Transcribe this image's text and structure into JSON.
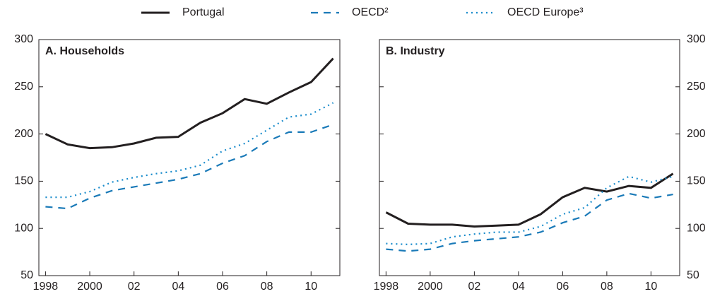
{
  "chart_data": [
    {
      "type": "line",
      "title": "A. Households",
      "y_axis_position": "left",
      "x": [
        1998,
        1999,
        2000,
        2001,
        2002,
        2003,
        2004,
        2005,
        2006,
        2007,
        2008,
        2009,
        2010,
        2011
      ],
      "xlim": [
        1997.7,
        2011.3
      ],
      "xticks": [
        1998,
        2000,
        {
          "value": 2002,
          "label": "02"
        },
        {
          "value": 2004,
          "label": "04"
        },
        {
          "value": 2006,
          "label": "06"
        },
        {
          "value": 2008,
          "label": "08"
        },
        {
          "value": 2010,
          "label": "10"
        }
      ],
      "ylim": [
        50,
        300
      ],
      "yticks": [
        50,
        100,
        150,
        200,
        250,
        300
      ],
      "series": [
        {
          "name": "Portugal",
          "color": "#231f20",
          "style": "solid",
          "values": [
            200,
            189,
            185,
            186,
            190,
            196,
            197,
            212,
            222,
            237,
            232,
            244,
            255,
            280
          ]
        },
        {
          "name": "OECD²",
          "color": "#1a7ab8",
          "style": "dashed",
          "values": [
            123,
            121,
            132,
            140,
            144,
            148,
            152,
            158,
            169,
            177,
            192,
            202,
            202,
            210
          ]
        },
        {
          "name": "OECD Europe³",
          "color": "#1a8ccc",
          "style": "dotted",
          "values": [
            133,
            133,
            139,
            149,
            154,
            158,
            161,
            167,
            182,
            190,
            204,
            218,
            221,
            233
          ]
        }
      ]
    },
    {
      "type": "line",
      "title": "B. Industry",
      "y_axis_position": "right",
      "x": [
        1998,
        1999,
        2000,
        2001,
        2002,
        2003,
        2004,
        2005,
        2006,
        2007,
        2008,
        2009,
        2010,
        2011
      ],
      "xlim": [
        1997.7,
        2011.3
      ],
      "xticks": [
        1998,
        2000,
        {
          "value": 2002,
          "label": "02"
        },
        {
          "value": 2004,
          "label": "04"
        },
        {
          "value": 2006,
          "label": "06"
        },
        {
          "value": 2008,
          "label": "08"
        },
        {
          "value": 2010,
          "label": "10"
        }
      ],
      "ylim": [
        50,
        300
      ],
      "yticks": [
        50,
        100,
        150,
        200,
        250,
        300
      ],
      "series": [
        {
          "name": "Portugal",
          "color": "#231f20",
          "style": "solid",
          "values": [
            117,
            105,
            104,
            104,
            102,
            103,
            104,
            115,
            133,
            143,
            139,
            145,
            143,
            158
          ]
        },
        {
          "name": "OECD²",
          "color": "#1a7ab8",
          "style": "dashed",
          "values": [
            78,
            76,
            78,
            84,
            87,
            89,
            91,
            96,
            106,
            113,
            130,
            137,
            132,
            136
          ]
        },
        {
          "name": "OECD Europe³",
          "color": "#1a8ccc",
          "style": "dotted",
          "values": [
            84,
            83,
            84,
            91,
            94,
            96,
            96,
            102,
            115,
            122,
            143,
            155,
            149,
            155
          ]
        }
      ]
    }
  ]
}
